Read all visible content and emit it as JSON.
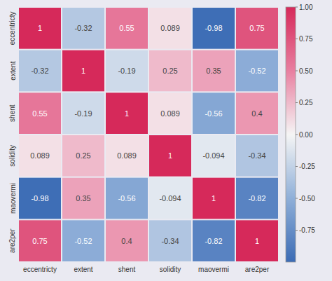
{
  "chart_data": {
    "type": "heatmap",
    "categories": [
      "eccentricty",
      "extent",
      "shent",
      "solidity",
      "maovermi",
      "are2per"
    ],
    "values": [
      [
        1,
        -0.32,
        0.55,
        0.089,
        -0.98,
        0.75
      ],
      [
        -0.32,
        1,
        -0.19,
        0.25,
        0.35,
        -0.52
      ],
      [
        0.55,
        -0.19,
        1,
        0.089,
        -0.56,
        0.4
      ],
      [
        0.089,
        0.25,
        0.089,
        1,
        -0.094,
        -0.34
      ],
      [
        -0.98,
        0.35,
        -0.56,
        -0.094,
        1,
        -0.82
      ],
      [
        0.75,
        -0.52,
        0.4,
        -0.34,
        -0.82,
        1
      ]
    ],
    "data_labels": true,
    "color_range": [
      -1,
      1
    ],
    "color_ticks": [
      {
        "value": 1.0,
        "label": "1.00"
      },
      {
        "value": 0.75,
        "label": "0.75"
      },
      {
        "value": 0.5,
        "label": "0.50"
      },
      {
        "value": 0.25,
        "label": "0.25"
      },
      {
        "value": 0.0,
        "label": "0.00"
      },
      {
        "value": -0.25,
        "label": "-0.25"
      },
      {
        "value": -0.5,
        "label": "-0.50"
      },
      {
        "value": -0.75,
        "label": "-0.75"
      }
    ]
  }
}
